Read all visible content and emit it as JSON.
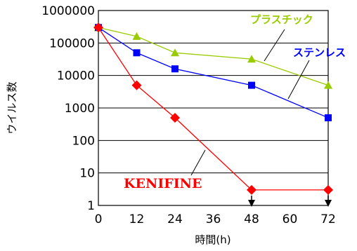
{
  "chart_data": {
    "type": "line",
    "title": "",
    "xlabel": "時間(h)",
    "ylabel": "ウイルス数",
    "x_ticks": [
      "0",
      "12",
      "24",
      "36",
      "48",
      "60",
      "72"
    ],
    "y_ticks": [
      "1",
      "10",
      "100",
      "1000",
      "10000",
      "100000",
      "1000000"
    ],
    "xlim": [
      0,
      72
    ],
    "ylim": [
      1,
      1000000
    ],
    "y_scale": "log",
    "grid": "horizontal",
    "series": [
      {
        "name": "プラスチック",
        "color": "#99cc00",
        "marker": "triangle",
        "x": [
          0,
          12,
          24,
          48,
          72
        ],
        "y": [
          300000,
          160000,
          50000,
          32000,
          5000
        ]
      },
      {
        "name": "ステンレス",
        "color": "#0000ff",
        "marker": "square",
        "x": [
          0,
          12,
          24,
          48,
          72
        ],
        "y": [
          300000,
          50000,
          16000,
          5000,
          500
        ]
      },
      {
        "name": "KENIFINE",
        "color": "#ff0000",
        "marker": "diamond",
        "x": [
          0,
          12,
          24,
          48,
          72
        ],
        "y": [
          300000,
          5000,
          500,
          3,
          3
        ]
      }
    ],
    "below_detection_arrows_x": [
      48,
      72
    ]
  }
}
